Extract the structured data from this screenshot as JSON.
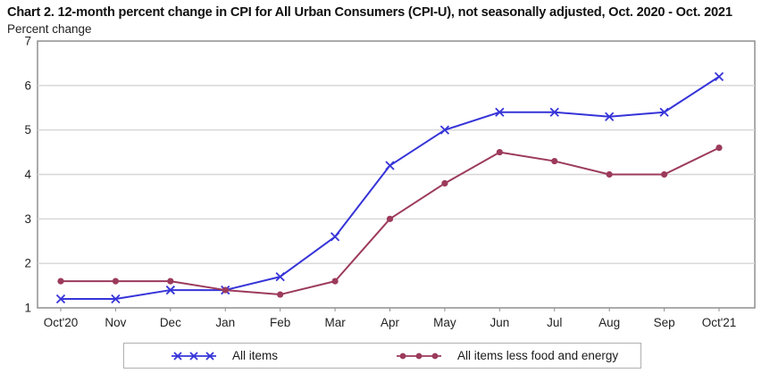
{
  "chart_data": {
    "type": "line",
    "title": "Chart 2. 12-month percent change in CPI for All Urban Consumers (CPI-U), not seasonally adjusted, Oct. 2020 - Oct. 2021",
    "ylabel": "Percent change",
    "categories": [
      "Oct'20",
      "Nov",
      "Dec",
      "Jan",
      "Feb",
      "Mar",
      "Apr",
      "May",
      "Jun",
      "Jul",
      "Aug",
      "Sep",
      "Oct'21"
    ],
    "series": [
      {
        "name": "All items",
        "marker": "x",
        "color": "#3634d8",
        "values": [
          1.2,
          1.2,
          1.4,
          1.4,
          1.7,
          2.6,
          4.2,
          5.0,
          5.4,
          5.4,
          5.3,
          5.4,
          6.2
        ]
      },
      {
        "name": "All items less food and energy",
        "marker": "circle",
        "color": "#9c3a5c",
        "values": [
          1.6,
          1.6,
          1.6,
          1.4,
          1.3,
          1.6,
          3.0,
          3.8,
          4.5,
          4.3,
          4.0,
          4.0,
          4.6
        ]
      }
    ],
    "ylim": [
      1,
      7
    ],
    "yticks": [
      1,
      2,
      3,
      4,
      5,
      6,
      7
    ],
    "grid": "horizontal",
    "legend_position": "bottom",
    "colors": {
      "plot_border": "#8f8f8f",
      "gridline": "#d6d6d6",
      "tick": "#8f8f8f",
      "axis_text": "#222222",
      "background": "#ffffff"
    }
  }
}
